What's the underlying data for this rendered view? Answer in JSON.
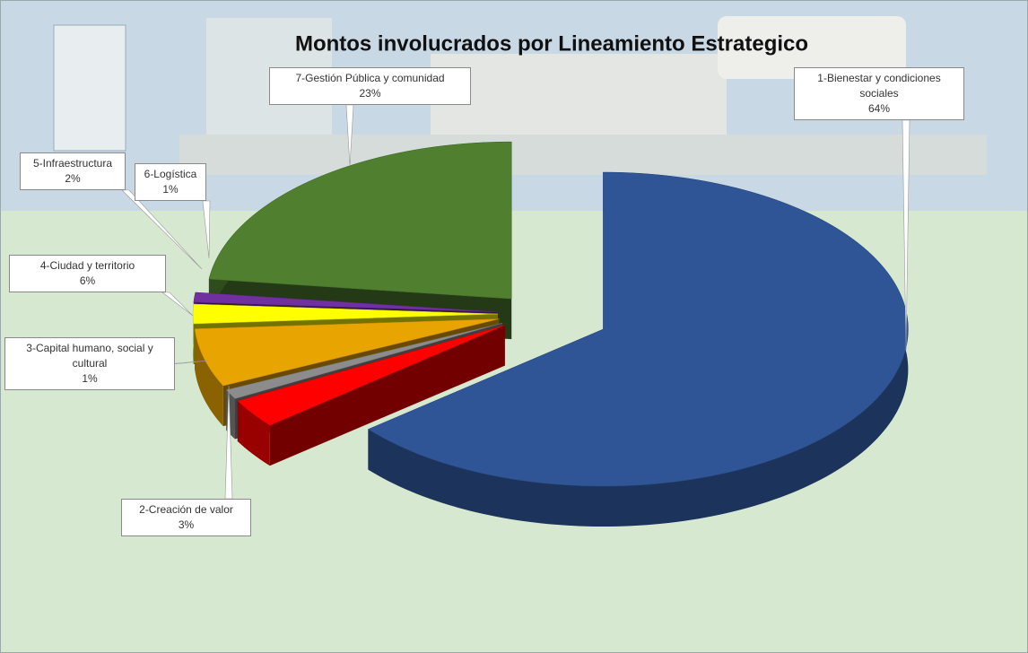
{
  "chart_data": {
    "type": "pie3d",
    "title": "Montos involucrados por Lineamiento Estrategico",
    "categories": [
      "1-Bienestar y condiciones sociales",
      "2-Creación de valor",
      "3-Capital humano, social y cultural",
      "4-Ciudad y territorio",
      "5-Infraestructura",
      "6-Logística",
      "7-Gestión Pública y comunidad"
    ],
    "values": [
      64,
      3,
      1,
      6,
      2,
      1,
      23
    ],
    "value_labels": [
      "64%",
      "3%",
      "1%",
      "6%",
      "2%",
      "1%",
      "23%"
    ],
    "colors": [
      "#2f5597",
      "#ff0000",
      "#8c8c8c",
      "#e8a400",
      "#ffff00",
      "#7030a0",
      "#4f7f2f"
    ]
  }
}
